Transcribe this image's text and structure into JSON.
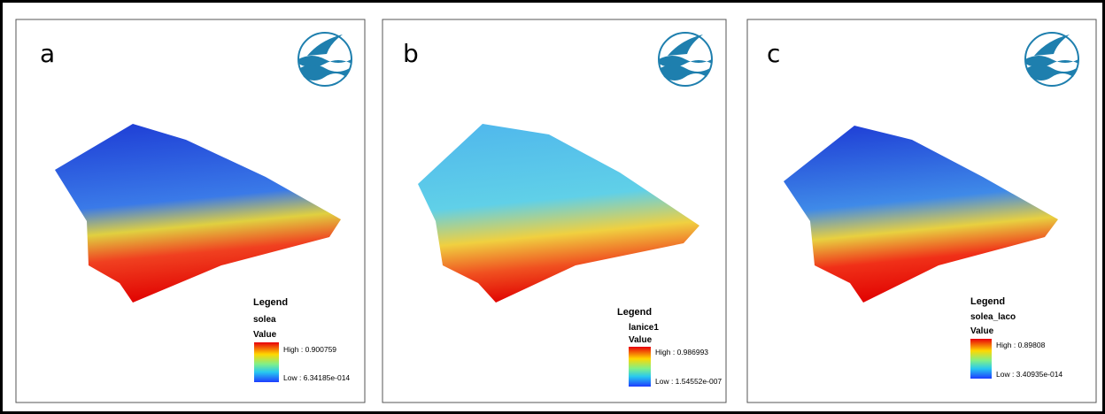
{
  "panels": [
    {
      "label": "a",
      "legend": {
        "title": "Legend",
        "layer": "solea",
        "field": "Value",
        "high": "High : 0.900759",
        "low": "Low : 6.34185e-014"
      }
    },
    {
      "label": "b",
      "legend": {
        "title": "Legend",
        "layer": "lanice1",
        "field": "Value",
        "high": "High : 0.986993",
        "low": "Low : 1.54552e-007"
      }
    },
    {
      "label": "c",
      "legend": {
        "title": "Legend",
        "layer": "solea_laco",
        "field": "Value",
        "high": "High : 0.89808",
        "low": "Low : 3.40935e-014"
      }
    }
  ]
}
